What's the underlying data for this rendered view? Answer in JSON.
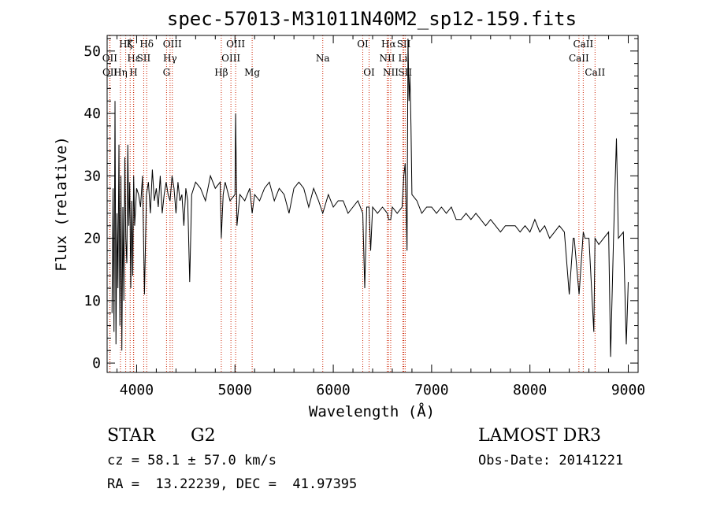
{
  "chart_data": {
    "type": "line",
    "title": "spec-57013-M31011N40M2_sp12-159.fits",
    "xlabel": "Wavelength (Å)",
    "ylabel": "Flux (relative)",
    "xlim": [
      3700,
      9100
    ],
    "ylim": [
      -1.5,
      52.5
    ],
    "xticks": [
      4000,
      5000,
      6000,
      7000,
      8000,
      9000
    ],
    "yticks": [
      0,
      10,
      20,
      30,
      40,
      50
    ],
    "grid": false,
    "legend": "none",
    "line_color": "#000000",
    "marker_color": "#cc2200",
    "series": [
      {
        "x": [
          3750,
          3760,
          3770,
          3780,
          3790,
          3800,
          3810,
          3820,
          3830,
          3840,
          3850,
          3860,
          3870,
          3880,
          3890,
          3900,
          3910,
          3920,
          3930,
          3940,
          3950,
          3960,
          3970,
          3980,
          3990,
          4000,
          4020,
          4040,
          4060,
          4080,
          4100,
          4120,
          4140,
          4160,
          4180,
          4200,
          4220,
          4240,
          4260,
          4280,
          4300,
          4320,
          4340,
          4360,
          4380,
          4400,
          4420,
          4440,
          4460,
          4480,
          4500,
          4520,
          4540,
          4560,
          4580,
          4600,
          4650,
          4700,
          4750,
          4800,
          4850,
          4861,
          4880,
          4900,
          4950,
          5000,
          5007,
          5020,
          5050,
          5100,
          5150,
          5175,
          5200,
          5250,
          5300,
          5350,
          5400,
          5450,
          5500,
          5550,
          5600,
          5650,
          5700,
          5750,
          5800,
          5850,
          5893,
          5950,
          6000,
          6050,
          6100,
          6150,
          6200,
          6250,
          6300,
          6320,
          6340,
          6364,
          6380,
          6400,
          6450,
          6500,
          6550,
          6563,
          6584,
          6600,
          6650,
          6700,
          6717,
          6731,
          6750,
          6760,
          6770,
          6780,
          6790,
          6800,
          6850,
          6900,
          6950,
          7000,
          7050,
          7100,
          7150,
          7200,
          7250,
          7300,
          7350,
          7400,
          7450,
          7500,
          7550,
          7600,
          7650,
          7700,
          7750,
          7800,
          7850,
          7900,
          7950,
          8000,
          8050,
          8100,
          8150,
          8200,
          8250,
          8300,
          8350,
          8400,
          8440,
          8450,
          8500,
          8542,
          8560,
          8600,
          8650,
          8662,
          8700,
          8750,
          8800,
          8820,
          8850,
          8880,
          8900,
          8950,
          8980,
          9000
        ],
        "y": [
          8,
          28,
          5,
          42,
          3,
          24,
          12,
          35,
          6,
          30,
          2,
          25,
          10,
          33,
          20,
          16,
          35,
          22,
          29,
          12,
          26,
          14,
          30,
          22,
          25,
          28,
          27,
          25,
          30,
          11,
          27,
          29,
          24,
          31,
          26,
          28,
          25,
          30,
          24,
          27,
          29,
          27,
          26,
          30,
          28,
          24,
          29,
          26,
          27,
          22,
          28,
          26,
          13,
          27,
          28,
          29,
          28,
          26,
          30,
          28,
          29,
          20,
          27,
          29,
          26,
          27,
          40,
          22,
          27,
          26,
          28,
          24,
          27,
          26,
          28,
          29,
          26,
          28,
          27,
          24,
          28,
          29,
          28,
          25,
          28,
          26,
          24,
          27,
          25,
          26,
          26,
          24,
          25,
          26,
          24,
          12,
          25,
          25,
          18,
          25,
          24,
          25,
          24,
          23,
          23,
          25,
          24,
          25,
          30,
          32,
          18,
          52,
          42,
          46,
          38,
          27,
          26,
          24,
          25,
          25,
          24,
          25,
          24,
          25,
          23,
          23,
          24,
          23,
          24,
          23,
          22,
          23,
          22,
          21,
          22,
          22,
          22,
          21,
          22,
          21,
          23,
          21,
          22,
          20,
          21,
          22,
          21,
          11,
          20,
          20,
          11,
          21,
          20,
          20,
          5,
          20,
          19,
          20,
          21,
          1,
          20,
          36,
          20,
          21,
          3,
          13
        ]
      }
    ],
    "spectral_lines": [
      {
        "label": "Hζ",
        "x": 3889,
        "row": 0
      },
      {
        "label": "OII",
        "x": 3727,
        "row": 1
      },
      {
        "label": "OII",
        "x": 3729,
        "row": 2
      },
      {
        "label": "Hε",
        "x": 3970,
        "row": 1
      },
      {
        "label": "Hη",
        "x": 3835,
        "row": 2
      },
      {
        "label": "K",
        "x": 3934,
        "row": 0
      },
      {
        "label": "H",
        "x": 3968,
        "row": 2
      },
      {
        "label": "Hδ",
        "x": 4102,
        "row": 0
      },
      {
        "label": "SII",
        "x": 4072,
        "row": 1
      },
      {
        "label": "OIII",
        "x": 4363,
        "row": 0
      },
      {
        "label": "Hγ",
        "x": 4340,
        "row": 1
      },
      {
        "label": "G",
        "x": 4304,
        "row": 2
      },
      {
        "label": "Hβ",
        "x": 4861,
        "row": 2
      },
      {
        "label": "OIII",
        "x": 5007,
        "row": 0
      },
      {
        "label": "OIII",
        "x": 4959,
        "row": 1
      },
      {
        "label": "Mg",
        "x": 5175,
        "row": 2
      },
      {
        "label": "Na",
        "x": 5893,
        "row": 1
      },
      {
        "label": "OI",
        "x": 6300,
        "row": 0
      },
      {
        "label": "OI",
        "x": 6364,
        "row": 2
      },
      {
        "label": "Hα",
        "x": 6563,
        "row": 0
      },
      {
        "label": "NII",
        "x": 6548,
        "row": 1
      },
      {
        "label": "NII",
        "x": 6584,
        "row": 2
      },
      {
        "label": "SII",
        "x": 6717,
        "row": 0
      },
      {
        "label": "Li",
        "x": 6708,
        "row": 1
      },
      {
        "label": "SII",
        "x": 6731,
        "row": 2
      },
      {
        "label": "CaII",
        "x": 8542,
        "row": 0
      },
      {
        "label": "CaII",
        "x": 8498,
        "row": 1
      },
      {
        "label": "CaII",
        "x": 8662,
        "row": 2
      }
    ]
  },
  "info": {
    "object_class": "STAR",
    "subclass": "G2",
    "survey": "LAMOST DR3",
    "redshift_text": "cz = 58.1 ± 57.0 km/s",
    "obs_date_text": "Obs-Date: 20141221",
    "coords_text": "RA =  13.22239, DEC =  41.97395"
  }
}
